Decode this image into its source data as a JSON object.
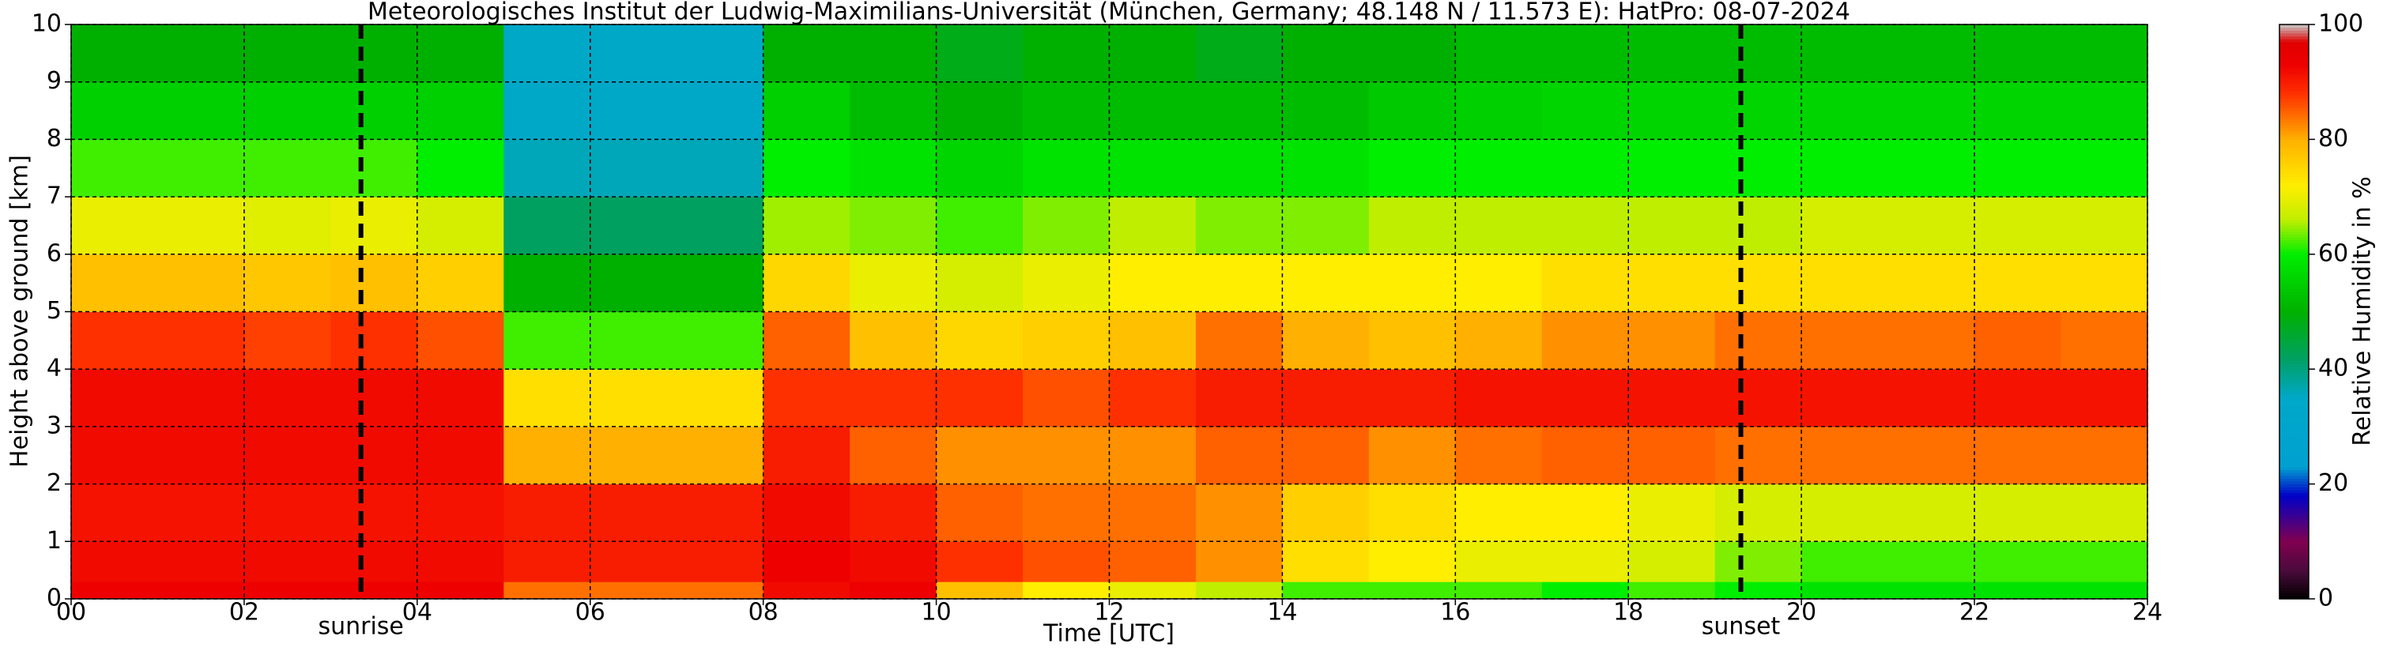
{
  "chart_data": {
    "type": "heatmap",
    "title": "Meteorologisches Institut der Ludwig-Maximilians-Universität (München, Germany; 48.148 N / 11.573 E):    HatPro: 08-07-2024",
    "xlabel": "Time [UTC]",
    "ylabel": "Height above ground [km]",
    "xlim": [
      0,
      24
    ],
    "ylim": [
      0,
      10
    ],
    "xticks": [
      {
        "value": 0,
        "label": "00"
      },
      {
        "value": 2,
        "label": "02"
      },
      {
        "value": 4,
        "label": "04"
      },
      {
        "value": 6,
        "label": "06"
      },
      {
        "value": 8,
        "label": "08"
      },
      {
        "value": 10,
        "label": "10"
      },
      {
        "value": 12,
        "label": "12"
      },
      {
        "value": 14,
        "label": "14"
      },
      {
        "value": 16,
        "label": "16"
      },
      {
        "value": 18,
        "label": "18"
      },
      {
        "value": 20,
        "label": "20"
      },
      {
        "value": 22,
        "label": "22"
      },
      {
        "value": 24,
        "label": "24"
      }
    ],
    "yticks": [
      0,
      1,
      2,
      3,
      4,
      5,
      6,
      7,
      8,
      9,
      10
    ],
    "grid": true,
    "x_edges": [
      0,
      1,
      2,
      3,
      4,
      5,
      6,
      7,
      8,
      9,
      10,
      11,
      12,
      13,
      14,
      15,
      16,
      17,
      18,
      19,
      20,
      21,
      22,
      23,
      24
    ],
    "y_edges": [
      0,
      0.3,
      1,
      2,
      3,
      4,
      5,
      6,
      7,
      8,
      9,
      10
    ],
    "values": [
      [
        93,
        92,
        91,
        92,
        92,
        88,
        78,
        70,
        62,
        55,
        50
      ],
      [
        93,
        92,
        91,
        92,
        92,
        88,
        78,
        70,
        62,
        55,
        50
      ],
      [
        93,
        92,
        91,
        92,
        92,
        87,
        77,
        69,
        62,
        55,
        50
      ],
      [
        93,
        92,
        91,
        92,
        92,
        88,
        78,
        70,
        62,
        55,
        50
      ],
      [
        93,
        92,
        91,
        92,
        92,
        86,
        76,
        68,
        60,
        55,
        50
      ],
      [
        84,
        90,
        90,
        80,
        74,
        62,
        50,
        42,
        36,
        35,
        35
      ],
      [
        84,
        90,
        90,
        80,
        74,
        62,
        50,
        42,
        36,
        35,
        35
      ],
      [
        84,
        90,
        90,
        80,
        74,
        62,
        50,
        42,
        36,
        35,
        35
      ],
      [
        92,
        93,
        92,
        90,
        88,
        85,
        75,
        65,
        60,
        55,
        50
      ],
      [
        93,
        92,
        90,
        85,
        88,
        78,
        70,
        64,
        58,
        52,
        50
      ],
      [
        78,
        88,
        85,
        82,
        88,
        75,
        68,
        62,
        56,
        50,
        48
      ],
      [
        72,
        86,
        84,
        82,
        86,
        76,
        70,
        64,
        58,
        52,
        50
      ],
      [
        70,
        85,
        84,
        82,
        88,
        78,
        72,
        66,
        58,
        52,
        50
      ],
      [
        66,
        82,
        82,
        85,
        90,
        84,
        72,
        64,
        58,
        52,
        48
      ],
      [
        62,
        74,
        76,
        85,
        90,
        80,
        72,
        64,
        58,
        52,
        50
      ],
      [
        62,
        72,
        74,
        82,
        90,
        78,
        72,
        66,
        60,
        54,
        50
      ],
      [
        62,
        70,
        72,
        84,
        91,
        80,
        72,
        66,
        60,
        55,
        52
      ],
      [
        60,
        70,
        72,
        85,
        91,
        82,
        74,
        66,
        60,
        56,
        52
      ],
      [
        62,
        68,
        70,
        85,
        91,
        82,
        74,
        66,
        60,
        56,
        52
      ],
      [
        60,
        64,
        68,
        84,
        91,
        84,
        74,
        66,
        60,
        56,
        52
      ],
      [
        58,
        62,
        68,
        84,
        91,
        84,
        74,
        68,
        60,
        56,
        52
      ],
      [
        58,
        62,
        68,
        84,
        91,
        84,
        74,
        68,
        60,
        56,
        52
      ],
      [
        58,
        62,
        68,
        84,
        91,
        85,
        74,
        68,
        60,
        56,
        52
      ],
      [
        58,
        62,
        68,
        84,
        91,
        84,
        74,
        68,
        60,
        56,
        52
      ]
    ],
    "annotations": [
      {
        "x": 3.35,
        "label": "sunrise"
      },
      {
        "x": 19.3,
        "label": "sunset"
      }
    ],
    "colorbar": {
      "label": "Relative Humidity in %",
      "lim": [
        0,
        100
      ],
      "ticks": [
        0,
        20,
        40,
        60,
        80,
        100
      ],
      "stops": [
        {
          "value": 0,
          "color": "#000000"
        },
        {
          "value": 5,
          "color": "#4b0a3c"
        },
        {
          "value": 10,
          "color": "#800050"
        },
        {
          "value": 18,
          "color": "#0000c8"
        },
        {
          "value": 23,
          "color": "#00a0d0"
        },
        {
          "value": 35,
          "color": "#00a8c8"
        },
        {
          "value": 42,
          "color": "#00a060"
        },
        {
          "value": 50,
          "color": "#00b000"
        },
        {
          "value": 60,
          "color": "#00ee00"
        },
        {
          "value": 66,
          "color": "#c0ee00"
        },
        {
          "value": 72,
          "color": "#ffee00"
        },
        {
          "value": 80,
          "color": "#ffb000"
        },
        {
          "value": 88,
          "color": "#ff3000"
        },
        {
          "value": 93,
          "color": "#ee0000"
        },
        {
          "value": 97,
          "color": "#e00000"
        },
        {
          "value": 100,
          "color": "#c8c8c8"
        }
      ]
    }
  }
}
